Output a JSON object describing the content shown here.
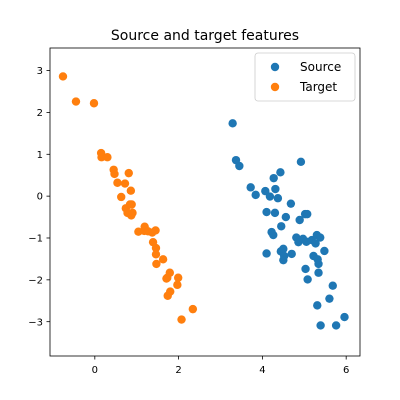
{
  "chart_data": {
    "type": "scatter",
    "title": "Source and target features",
    "xlabel": "",
    "ylabel": "",
    "xlim": [
      -1.07,
      6.33
    ],
    "ylim": [
      -3.82,
      3.54
    ],
    "x_ticks": [
      0,
      2,
      4,
      6
    ],
    "y_ticks": [
      -3,
      -2,
      -1,
      0,
      1,
      2,
      3
    ],
    "grid": false,
    "legend_position": "upper right",
    "series": [
      {
        "name": "Source",
        "color": "#1f77b4",
        "points": [
          [
            3.29,
            1.74
          ],
          [
            3.37,
            0.86
          ],
          [
            3.45,
            0.72
          ],
          [
            3.72,
            0.21
          ],
          [
            3.84,
            0.03
          ],
          [
            4.07,
            0.12
          ],
          [
            4.1,
            -0.38
          ],
          [
            4.1,
            -1.37
          ],
          [
            4.18,
            -0.01
          ],
          [
            4.22,
            -0.86
          ],
          [
            4.26,
            -0.93
          ],
          [
            4.27,
            0.43
          ],
          [
            4.3,
            -0.4
          ],
          [
            4.31,
            0.17
          ],
          [
            4.37,
            -0.05
          ],
          [
            4.43,
            0.57
          ],
          [
            4.44,
            -1.32
          ],
          [
            4.45,
            -0.72
          ],
          [
            4.5,
            -1.26
          ],
          [
            4.5,
            -1.53
          ],
          [
            4.52,
            -1.43
          ],
          [
            4.56,
            -0.5
          ],
          [
            4.68,
            -0.18
          ],
          [
            4.7,
            -1.38
          ],
          [
            4.81,
            -0.99
          ],
          [
            4.86,
            -1.1
          ],
          [
            4.89,
            -0.57
          ],
          [
            4.92,
            0.82
          ],
          [
            4.97,
            -1.02
          ],
          [
            5.02,
            -0.43
          ],
          [
            5.03,
            -1.74
          ],
          [
            5.05,
            -1.09
          ],
          [
            5.07,
            -0.43
          ],
          [
            5.08,
            -1.99
          ],
          [
            5.18,
            -1.05
          ],
          [
            5.22,
            -1.43
          ],
          [
            5.27,
            -1.13
          ],
          [
            5.3,
            -0.93
          ],
          [
            5.31,
            -2.61
          ],
          [
            5.32,
            -1.51
          ],
          [
            5.34,
            -1.62
          ],
          [
            5.34,
            -1.83
          ],
          [
            5.38,
            -0.99
          ],
          [
            5.39,
            -3.09
          ],
          [
            5.48,
            -1.31
          ],
          [
            5.6,
            -2.45
          ],
          [
            5.68,
            -2.14
          ],
          [
            5.76,
            -3.09
          ],
          [
            5.96,
            -2.89
          ]
        ]
      },
      {
        "name": "Target",
        "color": "#ff7f0e",
        "points": [
          [
            -0.76,
            2.86
          ],
          [
            -0.45,
            2.26
          ],
          [
            -0.02,
            2.22
          ],
          [
            0.15,
            1.03
          ],
          [
            0.16,
            0.93
          ],
          [
            0.3,
            0.93
          ],
          [
            0.45,
            0.63
          ],
          [
            0.47,
            0.53
          ],
          [
            0.54,
            0.32
          ],
          [
            0.63,
            -0.02
          ],
          [
            0.72,
            0.3
          ],
          [
            0.74,
            -0.29
          ],
          [
            0.78,
            -0.4
          ],
          [
            0.81,
            0.55
          ],
          [
            0.84,
            -0.2
          ],
          [
            0.86,
            0.13
          ],
          [
            0.87,
            -0.46
          ],
          [
            0.88,
            -0.2
          ],
          [
            0.9,
            -0.4
          ],
          [
            1.04,
            -0.85
          ],
          [
            1.18,
            -0.83
          ],
          [
            1.19,
            -0.73
          ],
          [
            1.27,
            -0.84
          ],
          [
            1.37,
            -0.87
          ],
          [
            1.39,
            -1.1
          ],
          [
            1.45,
            -0.82
          ],
          [
            1.46,
            -1.24
          ],
          [
            1.46,
            -1.39
          ],
          [
            1.47,
            -1.62
          ],
          [
            1.63,
            -1.51
          ],
          [
            1.71,
            -1.97
          ],
          [
            1.73,
            -1.95
          ],
          [
            1.74,
            -2.38
          ],
          [
            1.79,
            -1.83
          ],
          [
            1.8,
            -2.28
          ],
          [
            1.97,
            -2.12
          ],
          [
            1.99,
            -1.95
          ],
          [
            2.07,
            -2.95
          ],
          [
            2.34,
            -2.7
          ]
        ]
      }
    ]
  }
}
